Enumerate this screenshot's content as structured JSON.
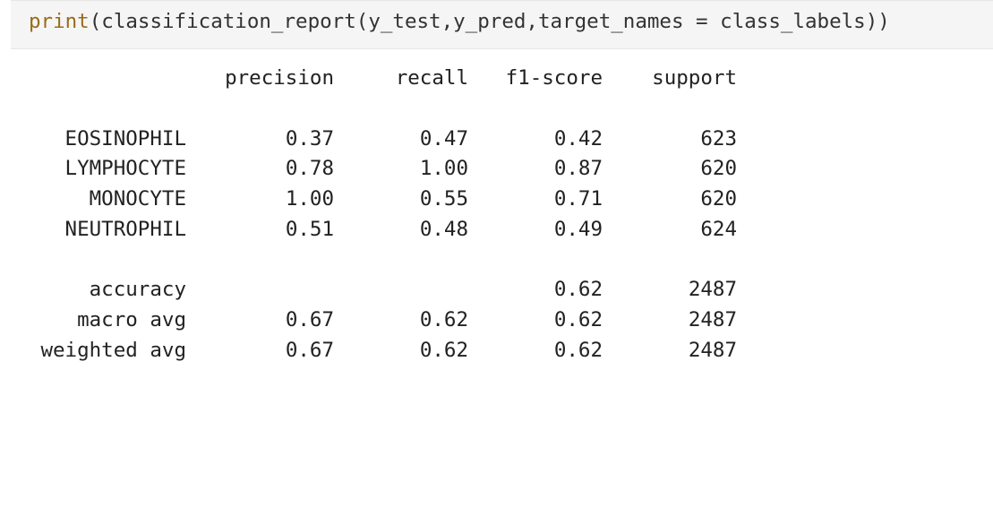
{
  "code_cell": {
    "fn": "print",
    "open1": "(",
    "call": "classification_report",
    "open2": "(",
    "args": "y_test,y_pred,target_names",
    "eq": " = ",
    "arg_val": "class_labels",
    "close": "))"
  },
  "report": {
    "headers": {
      "precision": "precision",
      "recall": "recall",
      "f1": "f1-score",
      "support": "support"
    },
    "classes": [
      {
        "label": "EOSINOPHIL",
        "precision": "0.37",
        "recall": "0.47",
        "f1": "0.42",
        "support": "623"
      },
      {
        "label": "LYMPHOCYTE",
        "precision": "0.78",
        "recall": "1.00",
        "f1": "0.87",
        "support": "620"
      },
      {
        "label": "MONOCYTE",
        "precision": "1.00",
        "recall": "0.55",
        "f1": "0.71",
        "support": "620"
      },
      {
        "label": "NEUTROPHIL",
        "precision": "0.51",
        "recall": "0.48",
        "f1": "0.49",
        "support": "624"
      }
    ],
    "summary": [
      {
        "label": "accuracy",
        "precision": "",
        "recall": "",
        "f1": "0.62",
        "support": "2487"
      },
      {
        "label": "macro avg",
        "precision": "0.67",
        "recall": "0.62",
        "f1": "0.62",
        "support": "2487"
      },
      {
        "label": "weighted avg",
        "precision": "0.67",
        "recall": "0.62",
        "f1": "0.62",
        "support": "2487"
      }
    ]
  }
}
